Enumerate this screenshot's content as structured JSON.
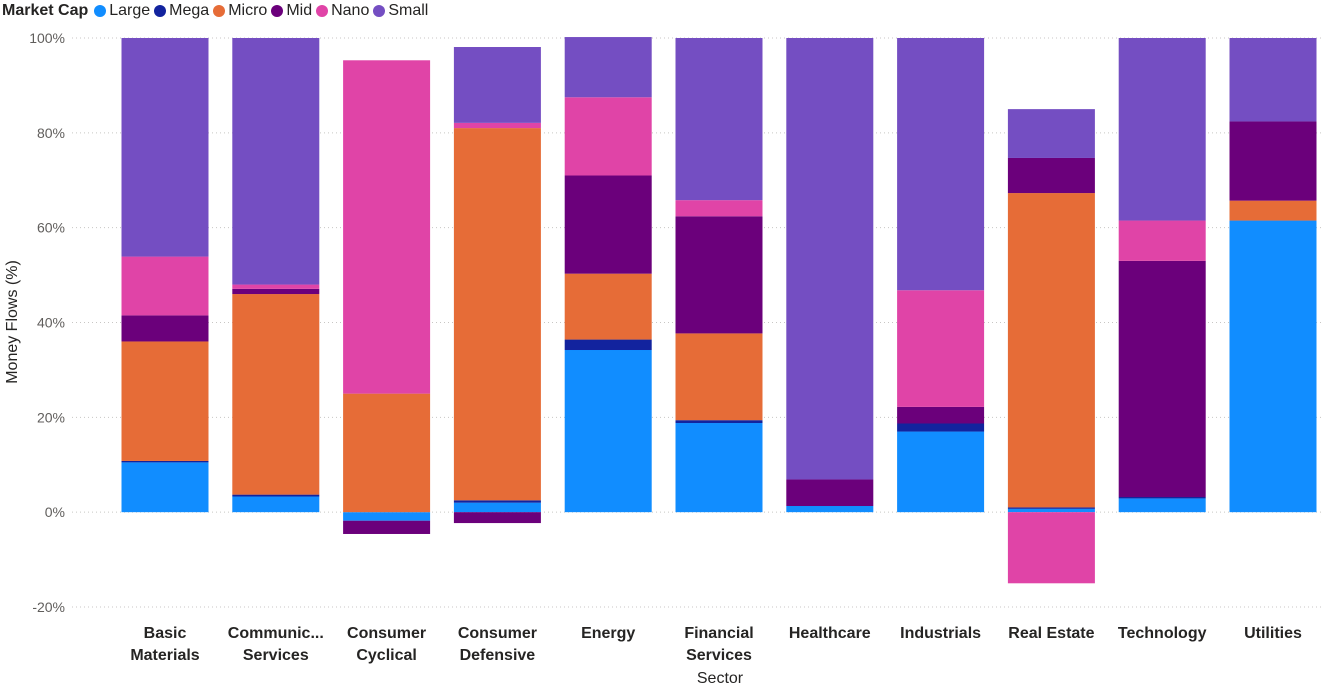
{
  "legend": {
    "title": "Market Cap",
    "items": [
      {
        "name": "Large",
        "color": "#118DFF"
      },
      {
        "name": "Mega",
        "color": "#12239E"
      },
      {
        "name": "Micro",
        "color": "#E66C37"
      },
      {
        "name": "Mid",
        "color": "#6B007B"
      },
      {
        "name": "Nano",
        "color": "#E044A7"
      },
      {
        "name": "Small",
        "color": "#744EC2"
      }
    ]
  },
  "chart_data": {
    "type": "bar",
    "stacked": true,
    "ylabel": "Money Flows (%)",
    "xlabel": "Sector",
    "ylim": [
      -20,
      100
    ],
    "yticks": [
      -20,
      0,
      20,
      40,
      60,
      80,
      100
    ],
    "ytick_labels": [
      "-20%",
      "0%",
      "20%",
      "40%",
      "60%",
      "80%",
      "100%"
    ],
    "grid": true,
    "legend_position": "top-left",
    "categories": [
      "Basic Materials",
      "Communic... Services",
      "Consumer Cyclical",
      "Consumer Defensive",
      "Energy",
      "Financial Services",
      "Healthcare",
      "Industrials",
      "Real Estate",
      "Technology",
      "Utilities"
    ],
    "category_labels": [
      [
        "Basic",
        "Materials"
      ],
      [
        "Communic...",
        "Services"
      ],
      [
        "Consumer",
        "Cyclical"
      ],
      [
        "Consumer",
        "Defensive"
      ],
      [
        "Energy"
      ],
      [
        "Financial",
        "Services"
      ],
      [
        "Healthcare"
      ],
      [
        "Industrials"
      ],
      [
        "Real Estate"
      ],
      [
        "Technology"
      ],
      [
        "Utilities"
      ]
    ],
    "series": [
      {
        "name": "Large",
        "color": "#118DFF",
        "values": [
          10.5,
          3.3,
          -1.8,
          2.0,
          34.2,
          18.8,
          1.3,
          17.0,
          0.7,
          2.9,
          61.5
        ]
      },
      {
        "name": "Mega",
        "color": "#12239E",
        "values": [
          0.3,
          0.4,
          0.0,
          0.5,
          2.2,
          0.6,
          0.0,
          1.7,
          0.3,
          0.3,
          0.0
        ]
      },
      {
        "name": "Micro",
        "color": "#E66C37",
        "values": [
          25.2,
          42.3,
          25.0,
          78.5,
          13.9,
          18.3,
          0.0,
          0.0,
          66.3,
          0.0,
          4.2
        ]
      },
      {
        "name": "Mid",
        "color": "#6B007B",
        "values": [
          5.5,
          1.1,
          -2.8,
          -2.3,
          20.7,
          24.7,
          5.6,
          3.5,
          7.4,
          49.8,
          16.7
        ]
      },
      {
        "name": "Nano",
        "color": "#E044A7",
        "values": [
          12.4,
          0.9,
          70.3,
          1.1,
          16.5,
          3.4,
          0.0,
          24.6,
          -15.0,
          8.5,
          0.0
        ]
      },
      {
        "name": "Small",
        "color": "#744EC2",
        "values": [
          46.1,
          52.0,
          0.0,
          16.0,
          12.7,
          34.2,
          93.1,
          53.2,
          10.3,
          38.5,
          17.6
        ]
      }
    ]
  }
}
